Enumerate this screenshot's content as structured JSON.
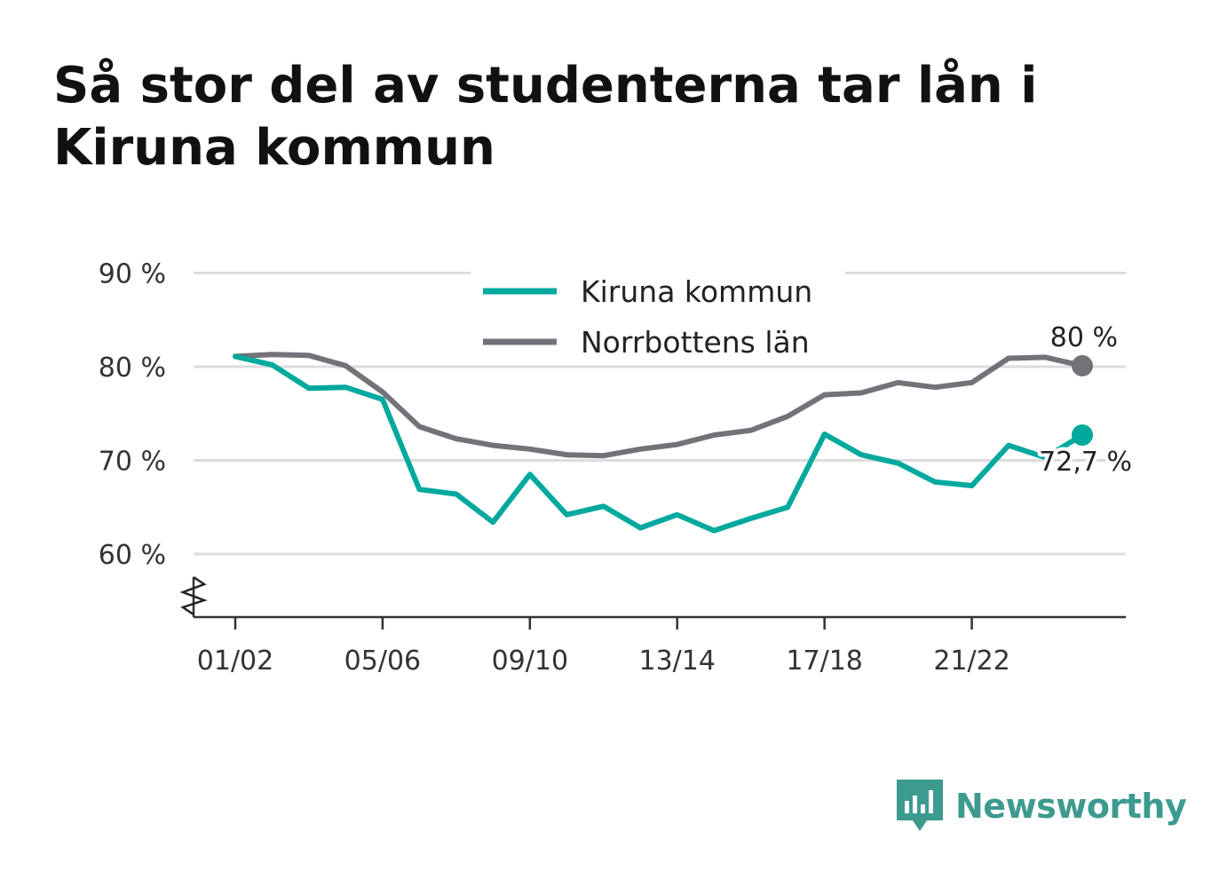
{
  "title": "Så stor del av studenterna tar lån i Kiruna kommun",
  "brand": {
    "name": "Newsworthy",
    "icon": "newsworthy-logo-icon",
    "color": "#3d9a8f"
  },
  "chart_data": {
    "type": "line",
    "title": "Så stor del av studenterna tar lån i Kiruna kommun",
    "xlabel": "",
    "ylabel": "",
    "ylim": [
      53,
      90
    ],
    "y_ticks": [
      60,
      70,
      80,
      90
    ],
    "y_tick_labels": [
      "60 %",
      "70 %",
      "80 %",
      "90 %"
    ],
    "y_axis_broken": true,
    "grid": true,
    "legend_position": "top-center",
    "x": [
      "01/02",
      "02/03",
      "03/04",
      "04/05",
      "05/06",
      "06/07",
      "07/08",
      "08/09",
      "09/10",
      "10/11",
      "11/12",
      "12/13",
      "13/14",
      "14/15",
      "15/16",
      "16/17",
      "17/18",
      "18/19",
      "19/20",
      "20/21",
      "21/22",
      "22/23",
      "23/24",
      "24/25"
    ],
    "x_tick_labels": [
      "01/02",
      "05/06",
      "09/10",
      "13/14",
      "17/18",
      "21/22"
    ],
    "series": [
      {
        "name": "Kiruna kommun",
        "color": "#00a99d",
        "values": [
          81.1,
          80.2,
          77.7,
          77.8,
          76.5,
          66.9,
          66.4,
          63.4,
          68.5,
          64.2,
          65.1,
          62.8,
          64.2,
          62.5,
          63.8,
          65.0,
          72.8,
          70.6,
          69.7,
          67.7,
          67.3,
          71.6,
          70.3,
          72.7
        ],
        "end_label": "72,7 %"
      },
      {
        "name": "Norrbottens län",
        "color": "#737278",
        "values": [
          81.1,
          81.3,
          81.2,
          80.1,
          77.3,
          73.6,
          72.3,
          71.6,
          71.2,
          70.6,
          70.5,
          71.2,
          71.7,
          72.7,
          73.2,
          74.7,
          77.0,
          77.2,
          78.3,
          77.8,
          78.3,
          80.9,
          81.0,
          80.1
        ],
        "end_label": "80 %"
      }
    ]
  }
}
